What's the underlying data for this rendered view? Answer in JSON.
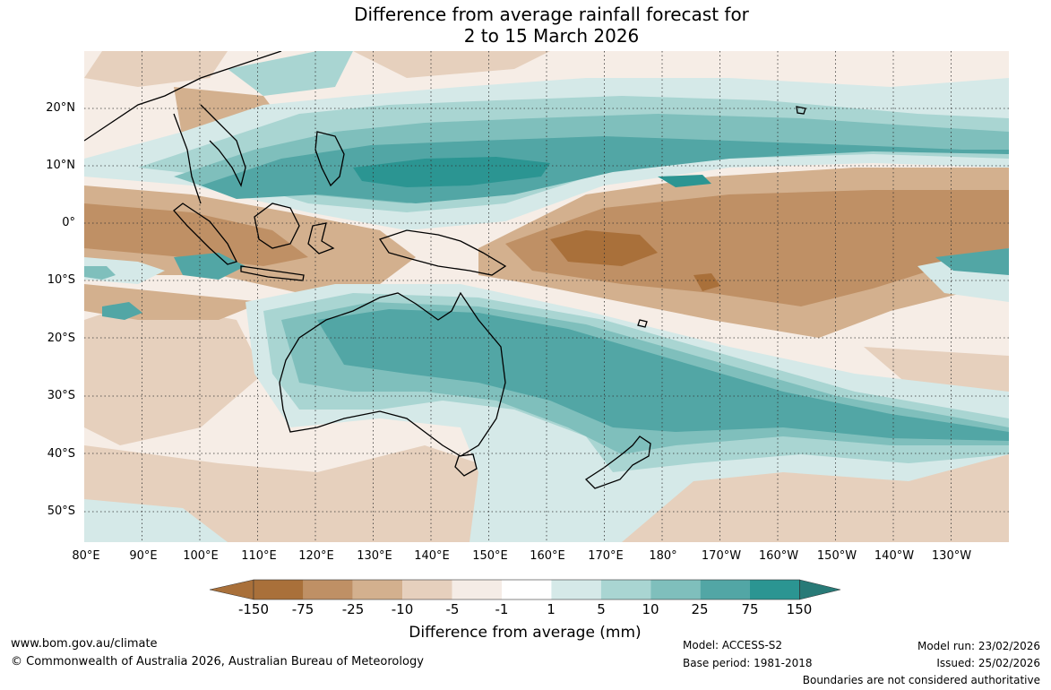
{
  "title": {
    "line1": "Difference from average rainfall forecast for",
    "line2": "2 to 15 March 2026"
  },
  "map": {
    "latitude_labels": [
      "20°N",
      "10°N",
      "0°",
      "10°S",
      "20°S",
      "30°S",
      "40°S",
      "50°S"
    ],
    "longitude_labels": [
      "80°E",
      "90°E",
      "100°E",
      "110°E",
      "120°E",
      "130°E",
      "140°E",
      "150°E",
      "160°E",
      "170°E",
      "180°",
      "170°W",
      "160°W",
      "150°W",
      "140°W",
      "130°W"
    ],
    "palette": {
      "dry_150": "#a9703a",
      "dry_75": "#bf9065",
      "dry_25": "#d3b08e",
      "dry_10": "#e6d0bd",
      "dry_5": "#f5ece6",
      "neutral": "#ffffff",
      "wet_1": "#d5e9e8",
      "wet_5": "#a9d5d2",
      "wet_10": "#7fbfbc",
      "wet_25": "#52a6a5",
      "wet_75": "#2b9592",
      "wet_150": "#287a77",
      "coast": "#000000",
      "borders": "#888888",
      "grid": "#333333"
    }
  },
  "colorbar": {
    "ticks": [
      "-150",
      "-75",
      "-25",
      "-10",
      "-5",
      "-1",
      "1",
      "5",
      "10",
      "25",
      "75",
      "150"
    ],
    "label": "Difference from average (mm)"
  },
  "footer": {
    "website": "www.bom.gov.au/climate",
    "copyright": "© Commonwealth of Australia 2026, Australian Bureau of Meteorology",
    "model": "Model: ACCESS-S2",
    "base_period": "Base period: 1981-2018",
    "model_run": "Model run: 23/02/2026",
    "issued": "Issued: 25/02/2026",
    "disclaimer": "Boundaries are not considered authoritative"
  }
}
